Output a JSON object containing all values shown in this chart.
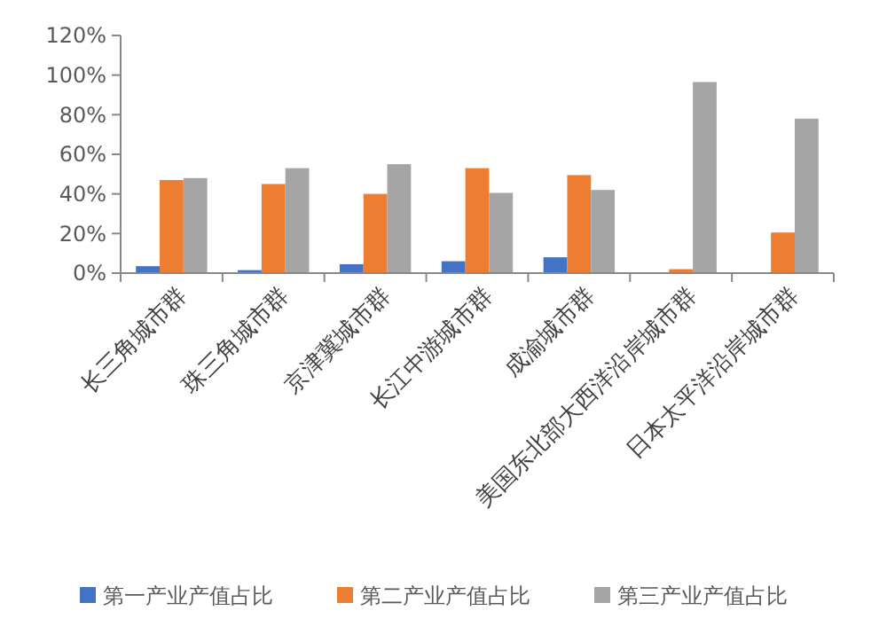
{
  "chart_data": {
    "type": "bar",
    "categories": [
      "长三角城市群",
      "珠三角城市群",
      "京津冀城市群",
      "长江中游城市群",
      "成渝城市群",
      "美国东北部大西洋沿岸城市群",
      "日本太平洋沿岸城市群"
    ],
    "series": [
      {
        "name": "第一产业产值占比",
        "color": "#4472c4",
        "values": [
          3.5,
          1.5,
          4.5,
          6,
          8,
          0,
          0
        ]
      },
      {
        "name": "第二产业产值占比",
        "color": "#ed7d31",
        "values": [
          47,
          45,
          40,
          53,
          49.5,
          2,
          20.5
        ]
      },
      {
        "name": "第三产业产值占比",
        "color": "#a5a5a5",
        "values": [
          48,
          53,
          55,
          40.5,
          42,
          96.5,
          78
        ]
      }
    ],
    "ylim": [
      0,
      120
    ],
    "yticks": [
      {
        "value": 0,
        "label": "0%"
      },
      {
        "value": 20,
        "label": "20%"
      },
      {
        "value": 40,
        "label": "40%"
      },
      {
        "value": 60,
        "label": "60%"
      },
      {
        "value": 80,
        "label": "80%"
      },
      {
        "value": 100,
        "label": "100%"
      },
      {
        "value": 120,
        "label": "120%"
      }
    ],
    "grid": false,
    "legend": "bottom"
  }
}
